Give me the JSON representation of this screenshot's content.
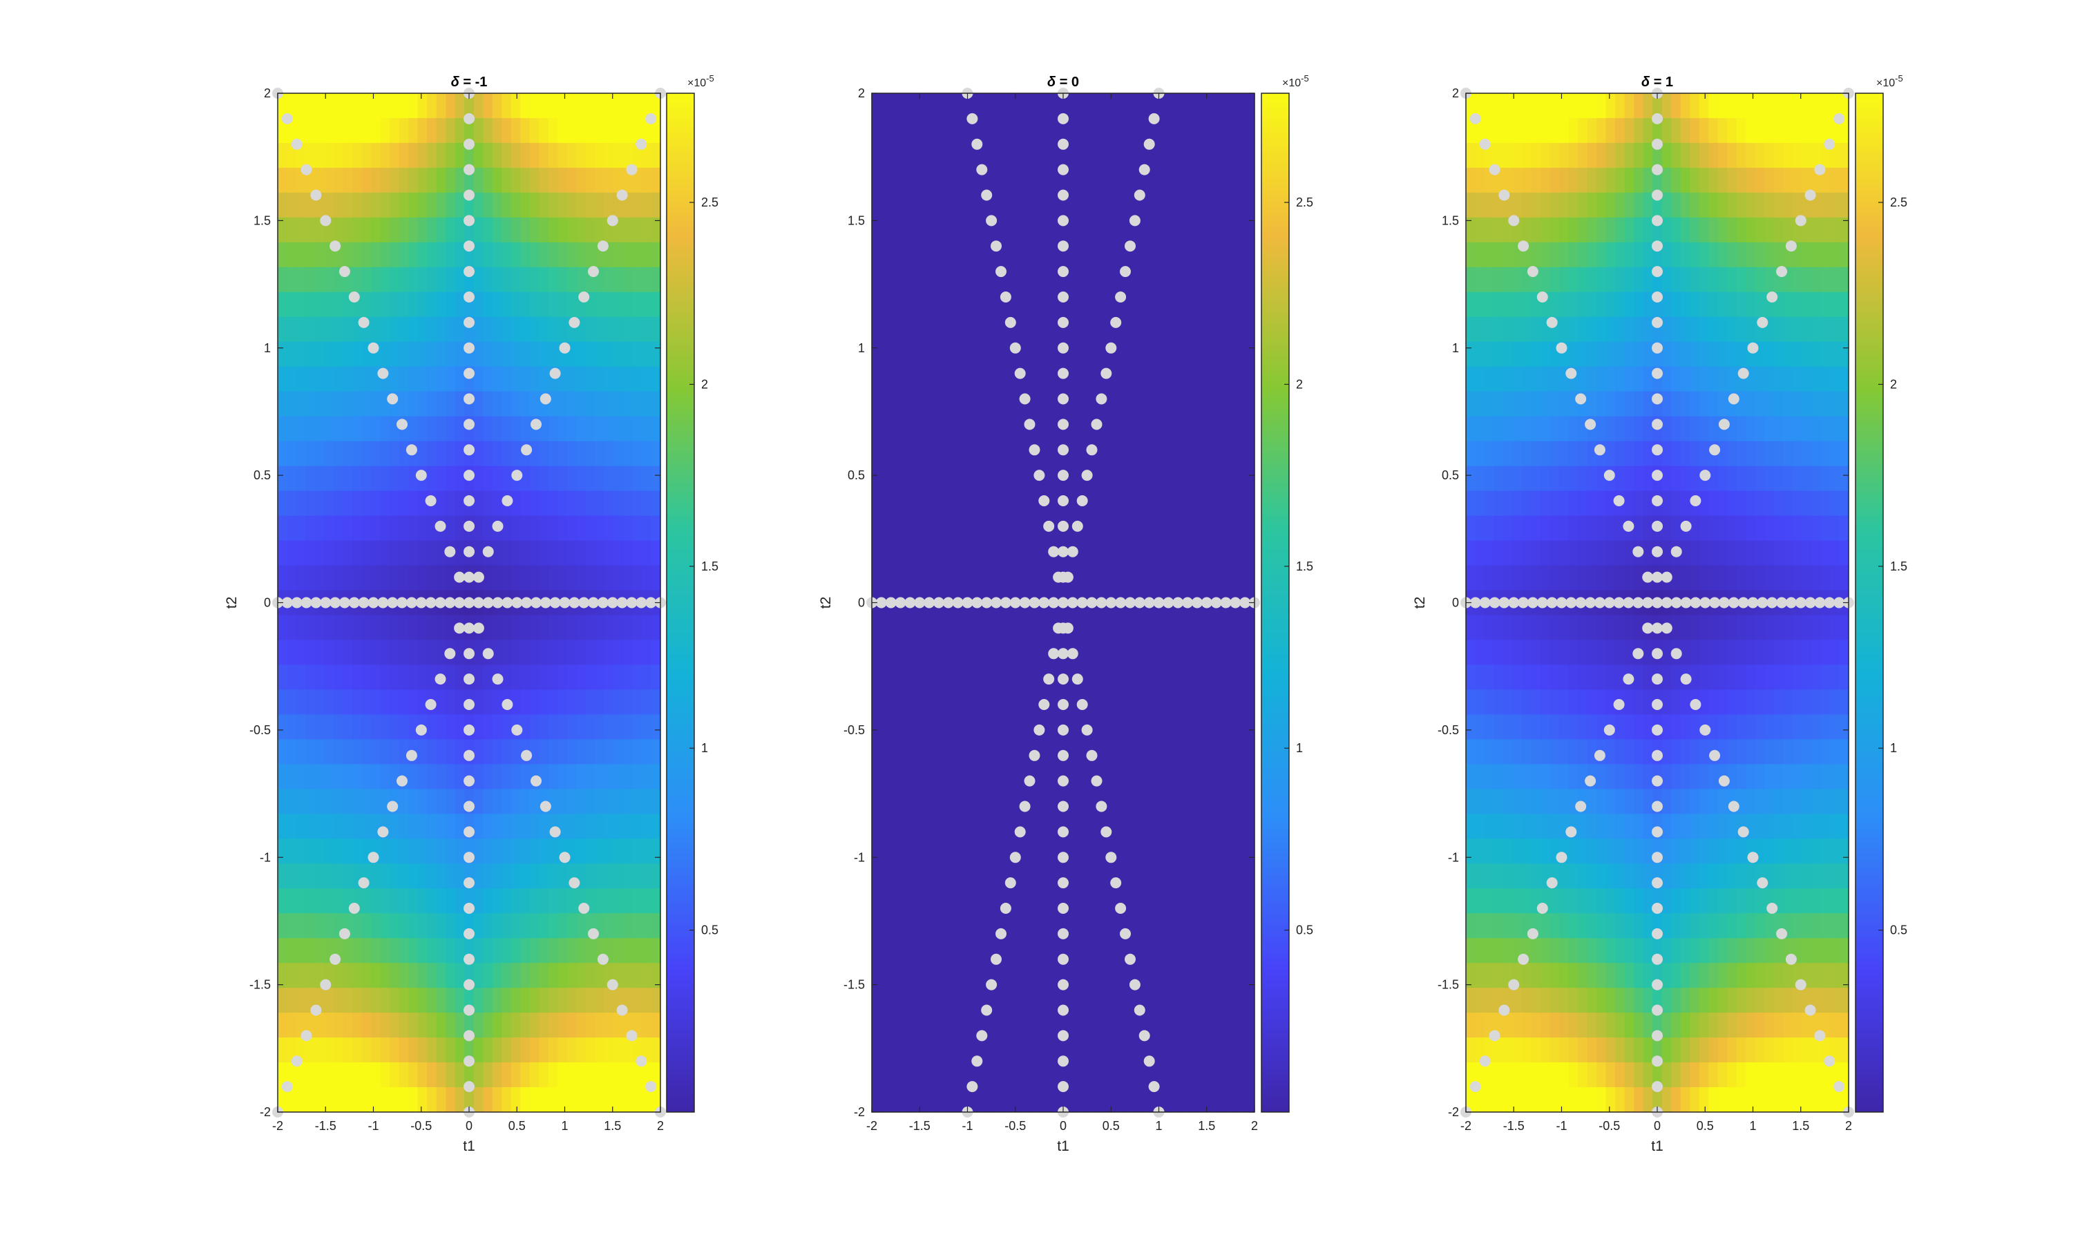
{
  "figure": {
    "colormap": "parula",
    "marker_color": "#d9d9d9"
  },
  "chart_data": [
    {
      "type": "heatmap",
      "title_symbol": "δ",
      "title_rest": " = -1",
      "xlabel": "t1",
      "ylabel": "t2",
      "xlim": [
        -2,
        2
      ],
      "ylim": [
        -2,
        2
      ],
      "xticks": [
        "-2",
        "-1.5",
        "-1",
        "-0.5",
        "0",
        "0.5",
        "1",
        "1.5",
        "2"
      ],
      "yticks": [
        "-2",
        "-1.5",
        "-1",
        "-0.5",
        "0",
        "0.5",
        "1",
        "1.5",
        "2"
      ],
      "color_range": [
        0,
        2.8e-05
      ],
      "peak_value": 2.8e-05,
      "colorbar_ticks": [
        "0.5",
        "1",
        "1.5",
        "2",
        "2.5"
      ],
      "colorbar_exponent_base": "×10",
      "colorbar_exponent": "-5",
      "marker_lines": [
        "t2 = 0",
        "t1 = 0",
        "t2 = t1",
        "t2 = -t1"
      ]
    },
    {
      "type": "heatmap",
      "title_symbol": "δ",
      "title_rest": " = 0",
      "xlabel": "t1",
      "ylabel": "t2",
      "xlim": [
        -2,
        2
      ],
      "ylim": [
        -2,
        2
      ],
      "xticks": [
        "-2",
        "-1.5",
        "-1",
        "-0.5",
        "0",
        "0.5",
        "1",
        "1.5",
        "2"
      ],
      "yticks": [
        "-2",
        "-1.5",
        "-1",
        "-0.5",
        "0",
        "0.5",
        "1",
        "1.5",
        "2"
      ],
      "color_range": [
        0,
        2.8e-05
      ],
      "peak_value": 0,
      "colorbar_ticks": [
        "0.5",
        "1",
        "1.5",
        "2",
        "2.5"
      ],
      "colorbar_exponent_base": "×10",
      "colorbar_exponent": "-5",
      "marker_lines": [
        "t2 = 0",
        "t1 = 0",
        "t2 = 2·t1",
        "t2 = -2·t1"
      ]
    },
    {
      "type": "heatmap",
      "title_symbol": "δ",
      "title_rest": " = 1",
      "xlabel": "t1",
      "ylabel": "t2",
      "xlim": [
        -2,
        2
      ],
      "ylim": [
        -2,
        2
      ],
      "xticks": [
        "-2",
        "-1.5",
        "-1",
        "-0.5",
        "0",
        "0.5",
        "1",
        "1.5",
        "2"
      ],
      "yticks": [
        "-2",
        "-1.5",
        "-1",
        "-0.5",
        "0",
        "0.5",
        "1",
        "1.5",
        "2"
      ],
      "color_range": [
        0,
        2.8e-05
      ],
      "peak_value": 2.8e-05,
      "colorbar_ticks": [
        "0.5",
        "1",
        "1.5",
        "2",
        "2.5"
      ],
      "colorbar_exponent_base": "×10",
      "colorbar_exponent": "-5",
      "marker_lines": [
        "t2 = 0",
        "t1 = 0",
        "t2 = t1",
        "t2 = -t1"
      ]
    }
  ]
}
